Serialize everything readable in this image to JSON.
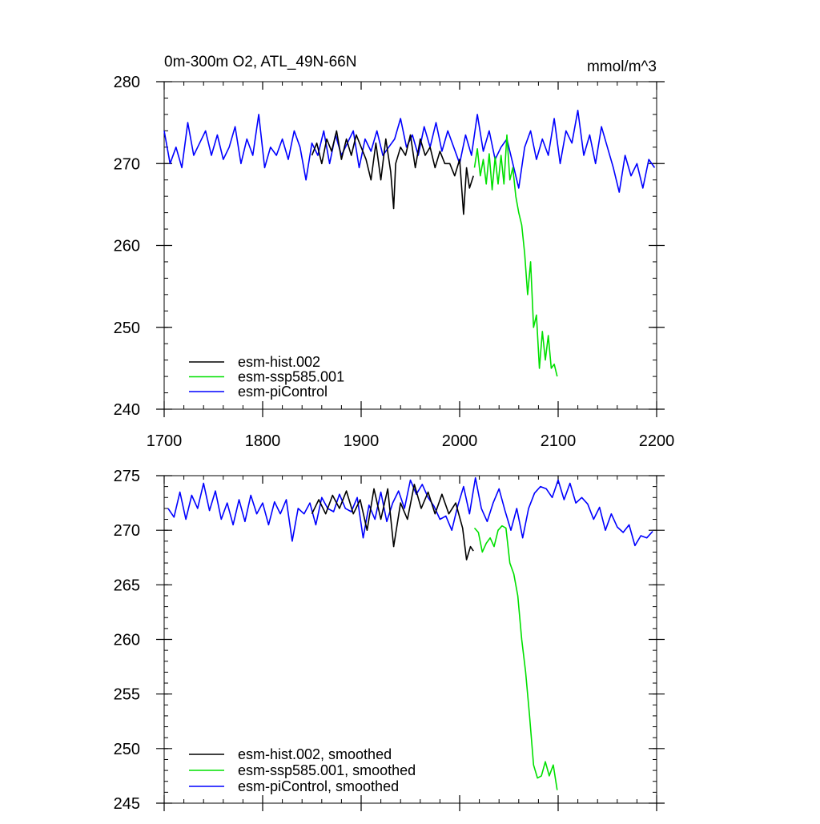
{
  "colors": {
    "hist": "#000000",
    "ssp": "#00e000",
    "control": "#0000ff",
    "axis": "#000000"
  },
  "chart_data": [
    {
      "type": "line",
      "title": "0m-300m O2, ATL_49N-66N",
      "units": "mmol/m^3",
      "xlim": [
        1700,
        2200
      ],
      "ylim": [
        240,
        280
      ],
      "x_ticks": [
        1700,
        1800,
        1900,
        2000,
        2100,
        2200
      ],
      "y_ticks": [
        240,
        250,
        260,
        270,
        280
      ],
      "x_tick_labels": [
        "1700",
        "1800",
        "1900",
        "2000",
        "2100",
        "2200"
      ],
      "y_tick_labels": [
        "240",
        "250",
        "260",
        "270",
        "280"
      ],
      "legend": [
        "esm-hist.002",
        "esm-ssp585.001",
        "esm-piControl"
      ],
      "legend_position": "bottom-left",
      "series": [
        {
          "name": "esm-hist.002",
          "color_key": "hist",
          "x": [
            1850,
            1855,
            1860,
            1865,
            1870,
            1875,
            1880,
            1885,
            1890,
            1895,
            1900,
            1905,
            1910,
            1915,
            1920,
            1925,
            1930,
            1933,
            1935,
            1940,
            1945,
            1950,
            1955,
            1960,
            1965,
            1970,
            1975,
            1980,
            1985,
            1990,
            1995,
            2000,
            2004,
            2007,
            2010,
            2014
          ],
          "y": [
            271,
            272.5,
            270,
            273,
            271.5,
            274,
            270.5,
            273,
            271,
            273.5,
            272,
            270.5,
            268,
            272.5,
            268,
            273,
            269,
            264.5,
            270,
            272,
            271,
            273.5,
            269.5,
            273,
            271,
            272,
            269.5,
            271.5,
            270,
            270,
            268.5,
            270.5,
            263.8,
            269.5,
            267,
            268.5
          ]
        },
        {
          "name": "esm-ssp585.001",
          "color_key": "ssp",
          "x": [
            2015,
            2018,
            2021,
            2024,
            2027,
            2030,
            2033,
            2036,
            2039,
            2042,
            2045,
            2048,
            2051,
            2054,
            2057,
            2060,
            2063,
            2066,
            2069,
            2072,
            2075,
            2078,
            2081,
            2084,
            2087,
            2090,
            2093,
            2096,
            2099
          ],
          "y": [
            269.5,
            271.8,
            268.5,
            270.5,
            267.5,
            271.2,
            266.8,
            270.8,
            267.5,
            271,
            267.5,
            273.5,
            268,
            269.5,
            266,
            264,
            262.5,
            259,
            254,
            258,
            250,
            251.5,
            245,
            249.5,
            246,
            249,
            245,
            245.5,
            244
          ]
        },
        {
          "name": "esm-piControl",
          "color_key": "control",
          "x": [
            1700,
            1706,
            1712,
            1718,
            1724,
            1730,
            1736,
            1742,
            1748,
            1754,
            1760,
            1766,
            1772,
            1778,
            1784,
            1790,
            1796,
            1802,
            1808,
            1814,
            1820,
            1826,
            1832,
            1838,
            1844,
            1850,
            1856,
            1862,
            1868,
            1874,
            1880,
            1886,
            1892,
            1898,
            1904,
            1910,
            1916,
            1922,
            1928,
            1934,
            1940,
            1946,
            1952,
            1958,
            1964,
            1970,
            1976,
            1982,
            1988,
            1994,
            2000,
            2006,
            2012,
            2018,
            2024,
            2030,
            2036,
            2042,
            2048,
            2054,
            2060,
            2066,
            2072,
            2078,
            2084,
            2090,
            2096,
            2102,
            2108,
            2114,
            2120,
            2126,
            2132,
            2138,
            2144,
            2150,
            2156,
            2162,
            2168,
            2174,
            2180,
            2186,
            2192,
            2198
          ],
          "y": [
            274,
            270,
            272,
            269.5,
            275,
            271,
            272.5,
            274,
            271,
            273.5,
            270.5,
            272,
            274.5,
            270,
            273,
            271,
            276,
            269.5,
            272,
            271,
            273,
            270.5,
            274,
            272,
            268,
            272.5,
            271,
            274,
            270,
            273.5,
            271,
            272.5,
            274,
            269.5,
            273,
            271.5,
            274,
            271,
            272,
            273,
            275.5,
            272,
            273.5,
            271,
            274.5,
            272,
            275,
            271.5,
            274,
            272,
            270,
            273.5,
            271,
            276,
            271.5,
            274,
            270.5,
            272,
            273,
            270,
            267,
            272,
            274,
            270.5,
            273,
            271,
            275.5,
            270,
            274,
            272.5,
            276.5,
            271,
            273.5,
            270,
            274.5,
            272,
            269.5,
            266.5,
            271,
            268.5,
            270,
            267,
            270.5,
            269.5
          ]
        }
      ]
    },
    {
      "type": "line",
      "title": "",
      "units": "",
      "xlim": [
        1700,
        2200
      ],
      "ylim": [
        245,
        275
      ],
      "x_ticks": [
        1700,
        1800,
        1900,
        2000,
        2100,
        2200
      ],
      "y_ticks": [
        245,
        250,
        255,
        260,
        265,
        270,
        275
      ],
      "x_tick_labels": [],
      "y_tick_labels": [
        "245",
        "250",
        "255",
        "260",
        "265",
        "270",
        "275"
      ],
      "legend": [
        "esm-hist.002, smoothed",
        "esm-ssp585.001, smoothed",
        "esm-piControl, smoothed"
      ],
      "legend_position": "bottom-left",
      "series": [
        {
          "name": "esm-hist.002, smoothed",
          "color_key": "hist",
          "x": [
            1850,
            1857,
            1864,
            1871,
            1878,
            1885,
            1892,
            1899,
            1906,
            1913,
            1920,
            1927,
            1933,
            1940,
            1947,
            1954,
            1961,
            1968,
            1975,
            1982,
            1989,
            1996,
            2003,
            2007,
            2011,
            2014
          ],
          "y": [
            271.5,
            272.8,
            271.5,
            273.2,
            272,
            273.6,
            271.5,
            272.8,
            270,
            273.8,
            271,
            273.8,
            268.5,
            272.5,
            271,
            274.2,
            272,
            273.5,
            271.5,
            273.3,
            271.5,
            272.5,
            270.2,
            267.3,
            268.5,
            268.1
          ],
          "smoothed": true
        },
        {
          "name": "esm-ssp585.001, smoothed",
          "color_key": "ssp",
          "x": [
            2015,
            2019,
            2023,
            2027,
            2031,
            2035,
            2039,
            2043,
            2047,
            2051,
            2055,
            2059,
            2063,
            2067,
            2071,
            2075,
            2079,
            2083,
            2087,
            2091,
            2095,
            2099
          ],
          "y": [
            270.2,
            269.8,
            268,
            268.8,
            269.3,
            268.5,
            270,
            270.4,
            270.2,
            267,
            266,
            264,
            260,
            257,
            253,
            248.5,
            247.3,
            247.5,
            248.8,
            247.5,
            248.5,
            246.2
          ],
          "smoothed": true
        },
        {
          "name": "esm-piControl, smoothed",
          "color_key": "control",
          "x": [
            1704,
            1710,
            1716,
            1722,
            1728,
            1734,
            1740,
            1746,
            1752,
            1758,
            1764,
            1770,
            1776,
            1782,
            1788,
            1794,
            1800,
            1806,
            1812,
            1818,
            1824,
            1830,
            1836,
            1842,
            1848,
            1854,
            1860,
            1866,
            1872,
            1878,
            1884,
            1890,
            1896,
            1902,
            1908,
            1914,
            1920,
            1926,
            1932,
            1938,
            1944,
            1950,
            1956,
            1962,
            1968,
            1974,
            1980,
            1986,
            1992,
            1998,
            2004,
            2010,
            2016,
            2022,
            2028,
            2034,
            2040,
            2046,
            2052,
            2058,
            2064,
            2070,
            2076,
            2082,
            2088,
            2094,
            2100,
            2106,
            2112,
            2118,
            2124,
            2130,
            2136,
            2142,
            2148,
            2154,
            2160,
            2166,
            2172,
            2178,
            2184,
            2190,
            2196
          ],
          "y": [
            272,
            271.2,
            273.5,
            271,
            273.2,
            272,
            274.3,
            271.8,
            273.6,
            271,
            272.5,
            270.5,
            272.8,
            270.8,
            273.2,
            271.5,
            272.5,
            270.5,
            272.6,
            271.5,
            272.8,
            269,
            272,
            271.5,
            272.5,
            270.5,
            273,
            272,
            271.7,
            273.3,
            272,
            271.7,
            273,
            269.3,
            272.3,
            271,
            273.5,
            270.8,
            272.5,
            273.6,
            272,
            274.6,
            273.3,
            274.2,
            273,
            272.2,
            271,
            271.3,
            270,
            272.2,
            274,
            271.5,
            274.8,
            272,
            270.8,
            272.5,
            273.8,
            271.8,
            270,
            272,
            269.3,
            272,
            273.4,
            274,
            273.8,
            273,
            274.6,
            272.8,
            274.3,
            272.5,
            273,
            272.4,
            271,
            272.1,
            270,
            271.5,
            270.3,
            269.8,
            270.5,
            268.6,
            269.5,
            269.3,
            269.9
          ],
          "smoothed": true
        }
      ]
    }
  ]
}
